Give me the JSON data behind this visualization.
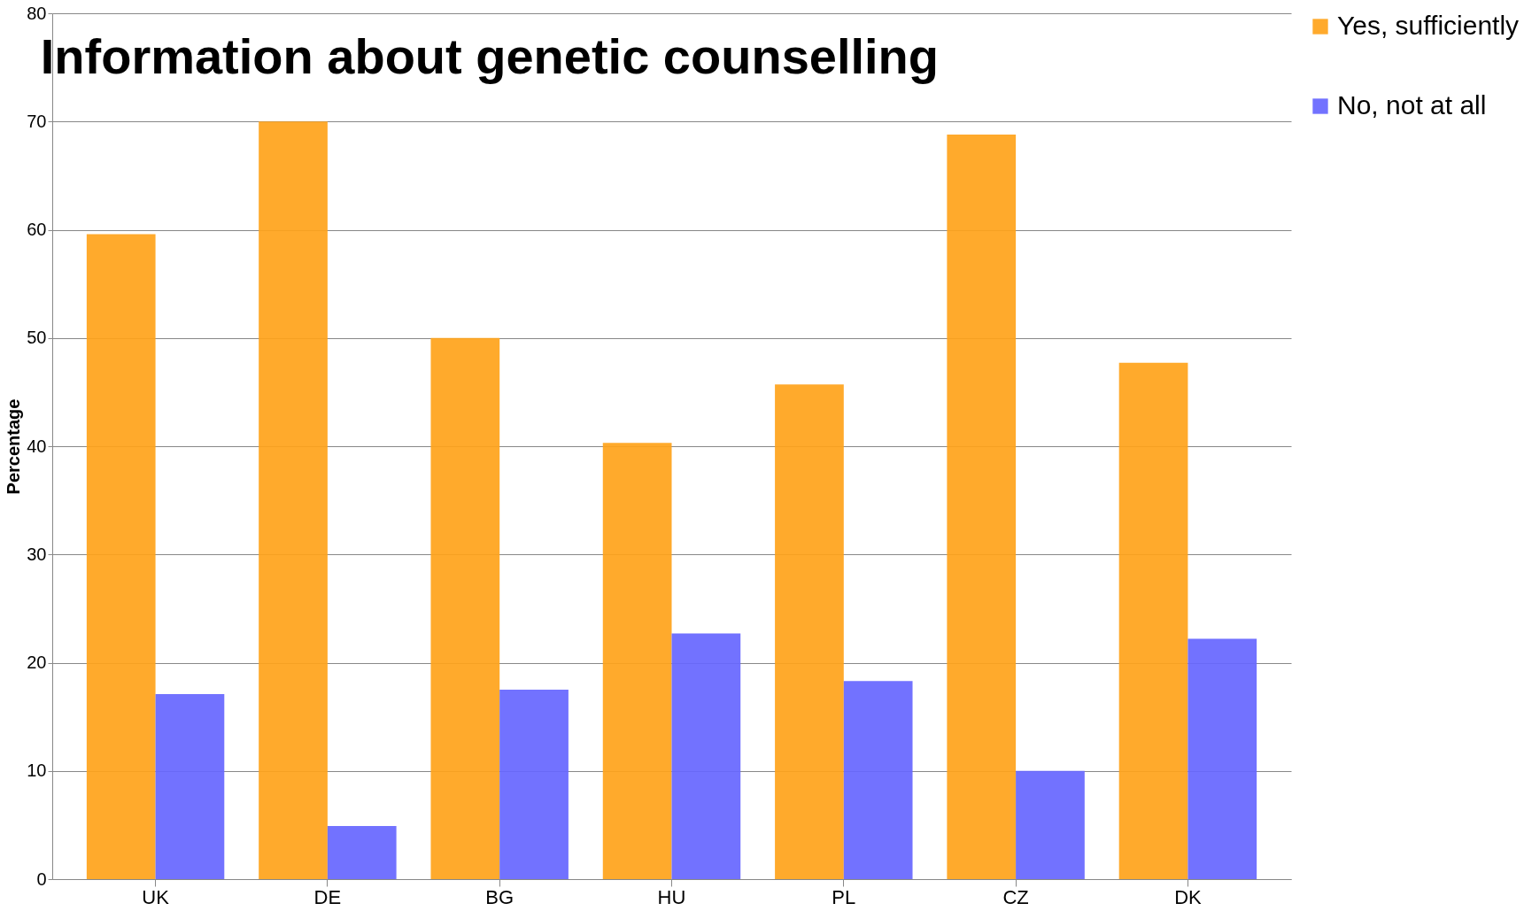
{
  "chart_data": {
    "type": "bar",
    "title": "Information about genetic counselling",
    "ylabel": "Percentage",
    "categories": [
      "UK",
      "DE",
      "BG",
      "HU",
      "PL",
      "CZ",
      "DK"
    ],
    "series": [
      {
        "name": "Yes, sufficiently",
        "color": "#ffa31a",
        "values": [
          59.6,
          70,
          50,
          40.3,
          45.7,
          68.8,
          47.7
        ]
      },
      {
        "name": "No, not at all",
        "color": "#6666ff",
        "values": [
          17.1,
          4.9,
          17.5,
          22.7,
          18.3,
          10,
          22.2
        ]
      }
    ],
    "ylim": [
      0,
      80
    ],
    "yticks": [
      0,
      10,
      20,
      30,
      40,
      50,
      60,
      70,
      80
    ],
    "grid": "y",
    "legend": "right"
  }
}
